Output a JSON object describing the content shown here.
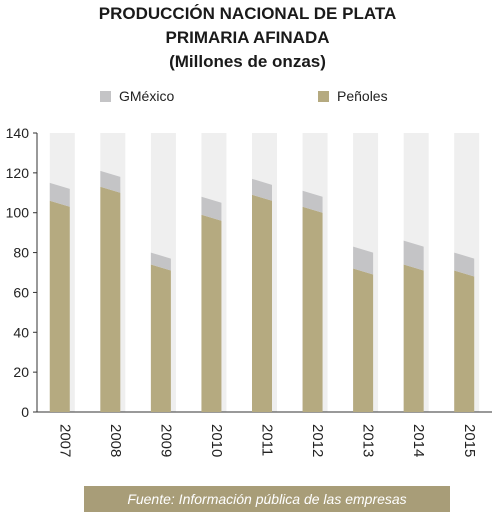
{
  "chart_data": {
    "type": "bar",
    "stacked": true,
    "title": [
      "PRODUCCIÓN NACIONAL DE PLATA",
      "PRIMARIA AFINADA",
      "(Millones de onzas)"
    ],
    "categories": [
      "2007",
      "2008",
      "2009",
      "2010",
      "2011",
      "2012",
      "2013",
      "2014",
      "2015"
    ],
    "series": [
      {
        "name": "Peñoles",
        "color": "#b5aa80",
        "values": [
          106,
          113,
          74,
          99,
          109,
          103,
          72,
          74,
          71
        ]
      },
      {
        "name": "GMéxico",
        "color": "#c4c4c6",
        "values": [
          9,
          8,
          6,
          9,
          8,
          8,
          11,
          12,
          9
        ]
      }
    ],
    "ylim": [
      0,
      140
    ],
    "yticks": [
      0,
      20,
      40,
      60,
      80,
      100,
      120,
      140
    ],
    "legend_order": [
      "GMéxico",
      "Peñoles"
    ],
    "legend_position": "top",
    "grid": false,
    "column_background_color": "#efefef",
    "source": "Fuente: Información pública de las empresas"
  }
}
